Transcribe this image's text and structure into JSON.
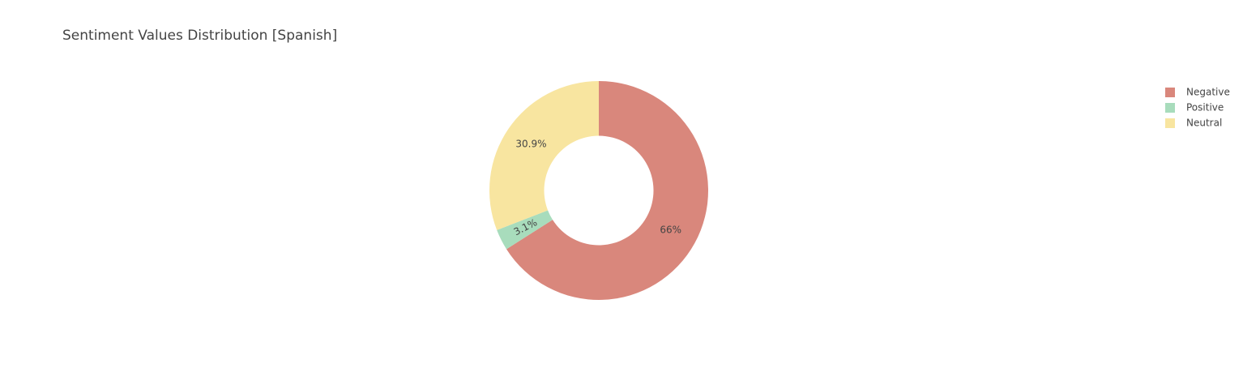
{
  "chart_data": {
    "type": "pie",
    "title": "Sentiment Values Distribution [Spanish]",
    "categories": [
      "Negative",
      "Positive",
      "Neutral"
    ],
    "values": [
      66,
      3.1,
      30.9
    ],
    "value_labels": [
      "66%",
      "3.1%",
      "30.9%"
    ],
    "colors": [
      "#d9877c",
      "#a8dcbc",
      "#f8e5a0"
    ],
    "hole": 0.5
  }
}
